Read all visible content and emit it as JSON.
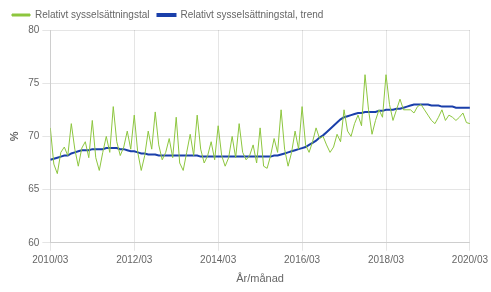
{
  "chart_data": {
    "type": "line",
    "xlabel": "År/månad",
    "ylabel": "%",
    "categories": [
      "2010/03",
      null,
      null,
      null,
      null,
      null,
      null,
      null,
      null,
      null,
      null,
      null,
      null,
      null,
      null,
      null,
      null,
      null,
      null,
      null,
      null,
      null,
      null,
      null,
      "2012/03",
      null,
      null,
      null,
      null,
      null,
      null,
      null,
      null,
      null,
      null,
      null,
      null,
      null,
      null,
      null,
      null,
      null,
      null,
      null,
      null,
      null,
      null,
      null,
      "2014/03",
      null,
      null,
      null,
      null,
      null,
      null,
      null,
      null,
      null,
      null,
      null,
      null,
      null,
      null,
      null,
      null,
      null,
      null,
      null,
      null,
      null,
      null,
      null,
      "2016/03",
      null,
      null,
      null,
      null,
      null,
      null,
      null,
      null,
      null,
      null,
      null,
      null,
      null,
      null,
      null,
      null,
      null,
      null,
      null,
      null,
      null,
      null,
      null,
      "2018/03",
      null,
      null,
      null,
      null,
      null,
      null,
      null,
      null,
      null,
      null,
      null,
      null,
      null,
      null,
      null,
      null,
      null,
      null,
      null,
      null,
      null,
      null,
      null,
      "2020/03"
    ],
    "series": [
      {
        "name": "Relativt sysselsättningstal",
        "color": "#8dc63f",
        "values": [
          70.8,
          67.4,
          66.5,
          68.5,
          69.0,
          68.2,
          71.2,
          68.8,
          67.2,
          68.9,
          69.5,
          68.0,
          71.5,
          68.0,
          66.8,
          68.5,
          70.0,
          68.5,
          72.8,
          69.5,
          68.2,
          69.0,
          70.5,
          68.8,
          72.0,
          68.5,
          66.8,
          68.2,
          70.5,
          68.8,
          72.3,
          69.2,
          67.8,
          68.5,
          69.8,
          68.0,
          71.8,
          67.5,
          66.8,
          68.5,
          70.2,
          68.2,
          72.0,
          68.8,
          67.5,
          68.2,
          69.5,
          67.8,
          71.0,
          68.2,
          67.2,
          68.0,
          70.0,
          68.0,
          71.2,
          68.5,
          67.8,
          68.2,
          69.2,
          67.5,
          70.8,
          67.2,
          67.0,
          68.2,
          69.8,
          68.5,
          72.5,
          68.8,
          67.2,
          68.5,
          70.5,
          68.8,
          72.8,
          69.2,
          68.5,
          69.5,
          70.8,
          69.8,
          70.0,
          69.2,
          68.5,
          69.0,
          70.2,
          69.5,
          72.5,
          70.5,
          70.0,
          71.2,
          72.0,
          71.0,
          75.8,
          72.5,
          70.2,
          71.5,
          72.5,
          71.8,
          75.8,
          73.0,
          71.5,
          72.5,
          73.5,
          72.5,
          72.5,
          72.5,
          72.2,
          72.8,
          73.0,
          72.5,
          72.0,
          71.5,
          71.2,
          71.8,
          72.5,
          71.5,
          72.0,
          71.8,
          71.5,
          71.8,
          72.2,
          71.3,
          71.2
        ]
      },
      {
        "name": "Relativt sysselsättningstal, trend",
        "color": "#1a3faa",
        "values": [
          67.8,
          67.9,
          68.0,
          68.1,
          68.2,
          68.2,
          68.4,
          68.5,
          68.6,
          68.7,
          68.7,
          68.7,
          68.8,
          68.8,
          68.8,
          68.8,
          68.9,
          68.9,
          68.9,
          68.9,
          68.8,
          68.8,
          68.7,
          68.6,
          68.6,
          68.5,
          68.4,
          68.4,
          68.3,
          68.3,
          68.3,
          68.2,
          68.2,
          68.2,
          68.2,
          68.2,
          68.2,
          68.2,
          68.2,
          68.2,
          68.2,
          68.2,
          68.2,
          68.1,
          68.1,
          68.1,
          68.1,
          68.1,
          68.1,
          68.1,
          68.1,
          68.1,
          68.1,
          68.1,
          68.1,
          68.1,
          68.1,
          68.1,
          68.1,
          68.1,
          68.1,
          68.1,
          68.1,
          68.1,
          68.2,
          68.2,
          68.3,
          68.4,
          68.5,
          68.6,
          68.7,
          68.8,
          68.9,
          69.0,
          69.2,
          69.4,
          69.6,
          69.9,
          70.1,
          70.4,
          70.7,
          71.0,
          71.3,
          71.6,
          71.8,
          71.9,
          72.0,
          72.1,
          72.2,
          72.2,
          72.3,
          72.3,
          72.3,
          72.3,
          72.4,
          72.4,
          72.5,
          72.5,
          72.5,
          72.6,
          72.6,
          72.7,
          72.8,
          72.9,
          73.0,
          73.0,
          73.0,
          73.0,
          73.0,
          72.9,
          72.9,
          72.9,
          72.8,
          72.8,
          72.8,
          72.8,
          72.7,
          72.7,
          72.7,
          72.7,
          72.7
        ]
      }
    ],
    "ylim": [
      60,
      80
    ],
    "yticks": [
      60,
      65,
      70,
      75,
      80
    ],
    "grid": true,
    "legend": "upper left"
  }
}
